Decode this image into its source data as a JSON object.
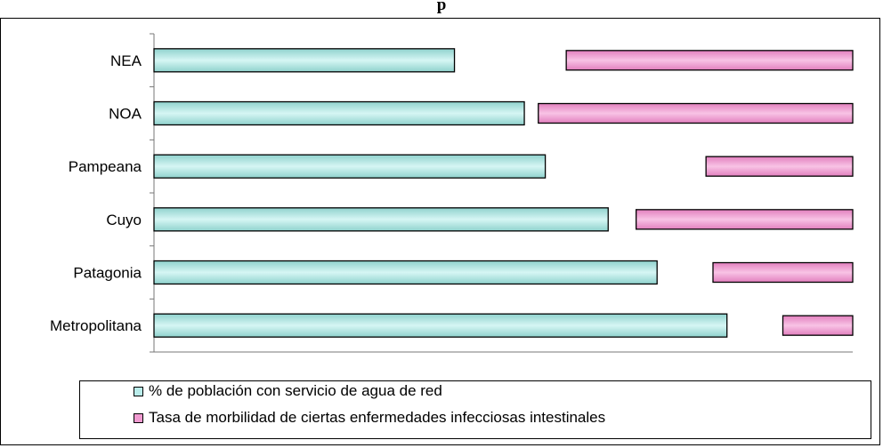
{
  "chart_data": {
    "type": "bar",
    "orientation": "horizontal",
    "title": "p",
    "categories": [
      "NEA",
      "NOA",
      "Pampeana",
      "Cuyo",
      "Patagonia",
      "Metropolitana"
    ],
    "series": [
      {
        "name": "% de población con servicio de agua de red",
        "color": "#b9ecea",
        "values": [
          0.43,
          0.53,
          0.56,
          0.65,
          0.72,
          0.82
        ]
      },
      {
        "name": "Tasa de morbilidad de ciertas enfermedades infecciosas intestinales",
        "color": "#f09ad0",
        "values": [
          0.41,
          0.45,
          0.21,
          0.31,
          0.2,
          0.1
        ]
      }
    ],
    "bar_alignment": "second series right-aligned to the axis end",
    "xlim": [
      0,
      1
    ],
    "axis_tick_labels": "none",
    "grid": false,
    "legend_position": "bottom"
  }
}
